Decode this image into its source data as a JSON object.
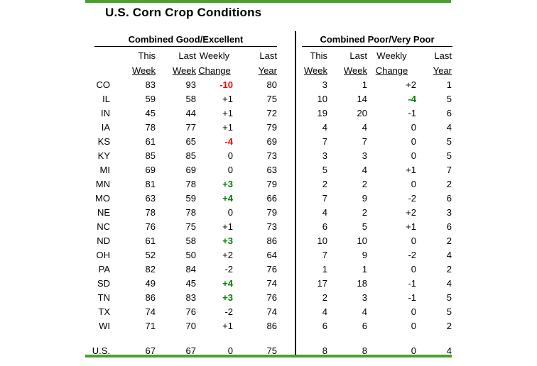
{
  "title": "U.S. Corn Crop Conditions",
  "colors": {
    "rule_green": "#4AA02C",
    "positive_green": "#008000",
    "negative_red": "#FF0000"
  },
  "chart_data": {
    "type": "table",
    "title": "U.S. Corn Crop Conditions",
    "sections": [
      {
        "title": "Combined Good/Excellent"
      },
      {
        "title": "Combined Poor/Very Poor"
      }
    ],
    "columns": {
      "line1": [
        "This",
        "Last",
        "Weekly",
        "Last"
      ],
      "line2": [
        "Week",
        "Week",
        "Change",
        "Year"
      ],
      "full": [
        "This Week",
        "Last Week",
        "Weekly Change",
        "Last Year"
      ]
    },
    "rows": [
      {
        "state": "CO",
        "ge": {
          "this_week": "83",
          "last_week": "93",
          "weekly_change": "-10",
          "change_style": "red",
          "last_year": "80"
        },
        "pv": {
          "this_week": "3",
          "last_week": "1",
          "weekly_change": "+2",
          "change_style": "plain",
          "last_year": "1"
        }
      },
      {
        "state": "IL",
        "ge": {
          "this_week": "59",
          "last_week": "58",
          "weekly_change": "+1",
          "change_style": "plain",
          "last_year": "75"
        },
        "pv": {
          "this_week": "10",
          "last_week": "14",
          "weekly_change": "-4",
          "change_style": "green",
          "last_year": "5"
        }
      },
      {
        "state": "IN",
        "ge": {
          "this_week": "45",
          "last_week": "44",
          "weekly_change": "+1",
          "change_style": "plain",
          "last_year": "72"
        },
        "pv": {
          "this_week": "19",
          "last_week": "20",
          "weekly_change": "-1",
          "change_style": "plain",
          "last_year": "6"
        }
      },
      {
        "state": "IA",
        "ge": {
          "this_week": "78",
          "last_week": "77",
          "weekly_change": "+1",
          "change_style": "plain",
          "last_year": "79"
        },
        "pv": {
          "this_week": "4",
          "last_week": "4",
          "weekly_change": "0",
          "change_style": "plain",
          "last_year": "4"
        }
      },
      {
        "state": "KS",
        "ge": {
          "this_week": "61",
          "last_week": "65",
          "weekly_change": "-4",
          "change_style": "red",
          "last_year": "69"
        },
        "pv": {
          "this_week": "7",
          "last_week": "7",
          "weekly_change": "0",
          "change_style": "plain",
          "last_year": "5"
        }
      },
      {
        "state": "KY",
        "ge": {
          "this_week": "85",
          "last_week": "85",
          "weekly_change": "0",
          "change_style": "plain",
          "last_year": "73"
        },
        "pv": {
          "this_week": "3",
          "last_week": "3",
          "weekly_change": "0",
          "change_style": "plain",
          "last_year": "5"
        }
      },
      {
        "state": "MI",
        "ge": {
          "this_week": "69",
          "last_week": "69",
          "weekly_change": "0",
          "change_style": "plain",
          "last_year": "63"
        },
        "pv": {
          "this_week": "5",
          "last_week": "4",
          "weekly_change": "+1",
          "change_style": "plain",
          "last_year": "7"
        }
      },
      {
        "state": "MN",
        "ge": {
          "this_week": "81",
          "last_week": "78",
          "weekly_change": "+3",
          "change_style": "green",
          "last_year": "79"
        },
        "pv": {
          "this_week": "2",
          "last_week": "2",
          "weekly_change": "0",
          "change_style": "plain",
          "last_year": "2"
        }
      },
      {
        "state": "MO",
        "ge": {
          "this_week": "63",
          "last_week": "59",
          "weekly_change": "+4",
          "change_style": "green",
          "last_year": "66"
        },
        "pv": {
          "this_week": "7",
          "last_week": "9",
          "weekly_change": "-2",
          "change_style": "plain",
          "last_year": "6"
        }
      },
      {
        "state": "NE",
        "ge": {
          "this_week": "78",
          "last_week": "78",
          "weekly_change": "0",
          "change_style": "plain",
          "last_year": "79"
        },
        "pv": {
          "this_week": "4",
          "last_week": "2",
          "weekly_change": "+2",
          "change_style": "plain",
          "last_year": "3"
        }
      },
      {
        "state": "NC",
        "ge": {
          "this_week": "76",
          "last_week": "75",
          "weekly_change": "+1",
          "change_style": "plain",
          "last_year": "73"
        },
        "pv": {
          "this_week": "6",
          "last_week": "5",
          "weekly_change": "+1",
          "change_style": "plain",
          "last_year": "6"
        }
      },
      {
        "state": "ND",
        "ge": {
          "this_week": "61",
          "last_week": "58",
          "weekly_change": "+3",
          "change_style": "green",
          "last_year": "86"
        },
        "pv": {
          "this_week": "10",
          "last_week": "10",
          "weekly_change": "0",
          "change_style": "plain",
          "last_year": "2"
        }
      },
      {
        "state": "OH",
        "ge": {
          "this_week": "52",
          "last_week": "50",
          "weekly_change": "+2",
          "change_style": "plain",
          "last_year": "64"
        },
        "pv": {
          "this_week": "7",
          "last_week": "9",
          "weekly_change": "-2",
          "change_style": "plain",
          "last_year": "4"
        }
      },
      {
        "state": "PA",
        "ge": {
          "this_week": "82",
          "last_week": "84",
          "weekly_change": "-2",
          "change_style": "plain",
          "last_year": "76"
        },
        "pv": {
          "this_week": "1",
          "last_week": "1",
          "weekly_change": "0",
          "change_style": "plain",
          "last_year": "2"
        }
      },
      {
        "state": "SD",
        "ge": {
          "this_week": "49",
          "last_week": "45",
          "weekly_change": "+4",
          "change_style": "green",
          "last_year": "74"
        },
        "pv": {
          "this_week": "17",
          "last_week": "18",
          "weekly_change": "-1",
          "change_style": "plain",
          "last_year": "4"
        }
      },
      {
        "state": "TN",
        "ge": {
          "this_week": "86",
          "last_week": "83",
          "weekly_change": "+3",
          "change_style": "green",
          "last_year": "76"
        },
        "pv": {
          "this_week": "2",
          "last_week": "3",
          "weekly_change": "-1",
          "change_style": "plain",
          "last_year": "5"
        }
      },
      {
        "state": "TX",
        "ge": {
          "this_week": "74",
          "last_week": "76",
          "weekly_change": "-2",
          "change_style": "plain",
          "last_year": "74"
        },
        "pv": {
          "this_week": "4",
          "last_week": "4",
          "weekly_change": "0",
          "change_style": "plain",
          "last_year": "5"
        }
      },
      {
        "state": "WI",
        "ge": {
          "this_week": "71",
          "last_week": "70",
          "weekly_change": "+1",
          "change_style": "plain",
          "last_year": "86"
        },
        "pv": {
          "this_week": "6",
          "last_week": "6",
          "weekly_change": "0",
          "change_style": "plain",
          "last_year": "2"
        }
      }
    ],
    "total_row": {
      "state": "U.S.",
      "ge": {
        "this_week": "67",
        "last_week": "67",
        "weekly_change": "0",
        "change_style": "plain",
        "last_year": "75"
      },
      "pv": {
        "this_week": "8",
        "last_week": "8",
        "weekly_change": "0",
        "change_style": "plain",
        "last_year": "4"
      }
    }
  }
}
